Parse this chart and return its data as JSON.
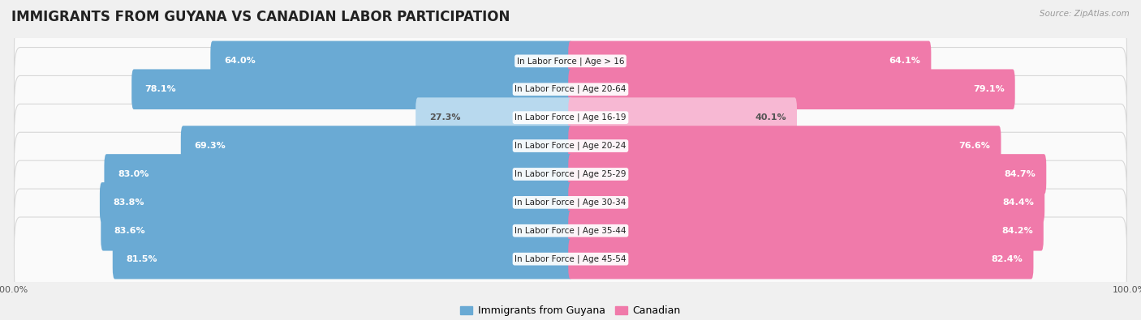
{
  "title": "IMMIGRANTS FROM GUYANA VS CANADIAN LABOR PARTICIPATION",
  "source": "Source: ZipAtlas.com",
  "categories": [
    "In Labor Force | Age > 16",
    "In Labor Force | Age 20-64",
    "In Labor Force | Age 16-19",
    "In Labor Force | Age 20-24",
    "In Labor Force | Age 25-29",
    "In Labor Force | Age 30-34",
    "In Labor Force | Age 35-44",
    "In Labor Force | Age 45-54"
  ],
  "guyana_values": [
    64.0,
    78.1,
    27.3,
    69.3,
    83.0,
    83.8,
    83.6,
    81.5
  ],
  "canadian_values": [
    64.1,
    79.1,
    40.1,
    76.6,
    84.7,
    84.4,
    84.2,
    82.4
  ],
  "guyana_color": "#6aaad4",
  "canadian_color": "#f07aaa",
  "guyana_light_color": "#b8d9ee",
  "canadian_light_color": "#f7b8d3",
  "background_color": "#f0f0f0",
  "row_bg_color": "#fafafa",
  "row_border_color": "#d8d8d8",
  "max_value": 100.0,
  "bar_height": 0.62,
  "title_fontsize": 12,
  "label_fontsize": 8,
  "tick_fontsize": 8,
  "legend_fontsize": 9
}
